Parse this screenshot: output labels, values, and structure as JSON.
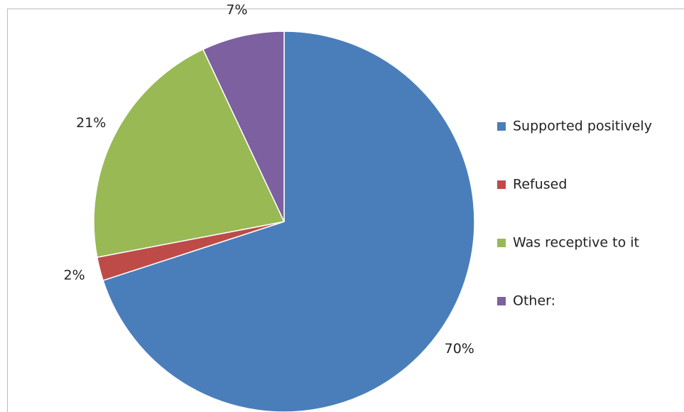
{
  "chart_data": {
    "type": "pie",
    "categories": [
      "Supported positively",
      "Refused",
      "Was receptive to it",
      "Other:"
    ],
    "values": [
      70,
      2,
      21,
      7
    ],
    "value_labels": [
      "70%",
      "2%",
      "21%",
      "7%"
    ],
    "colors": [
      "#4a7ebb",
      "#be4b48",
      "#98b954",
      "#7d60a0"
    ],
    "legend": "right"
  }
}
